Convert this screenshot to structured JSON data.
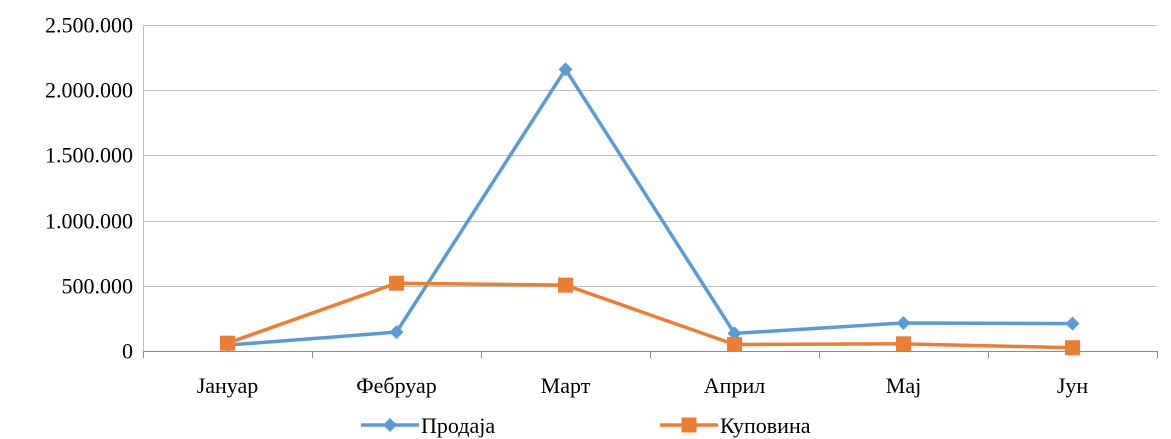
{
  "chart_data": {
    "type": "line",
    "categories": [
      "Јануар",
      "Фебруар",
      "Март",
      "Април",
      "Мај",
      "Јун"
    ],
    "series": [
      {
        "name": "Продаја",
        "values": [
          45000,
          145000,
          2160000,
          135000,
          215000,
          210000
        ],
        "color": "#5B9BD5",
        "marker": "diamond"
      },
      {
        "name": "Куповина",
        "values": [
          60000,
          520000,
          505000,
          50000,
          55000,
          25000
        ],
        "color": "#ED7D31",
        "marker": "square"
      }
    ],
    "y_tick_labels": [
      "0",
      "500.000",
      "1.000.000",
      "1.500.000",
      "2.000.000",
      "2.500.000"
    ],
    "y_tick_values": [
      0,
      500000,
      1000000,
      1500000,
      2000000,
      2500000
    ],
    "ylim": [
      0,
      2500000
    ],
    "grid": "horizontal",
    "legend_position": "bottom"
  }
}
